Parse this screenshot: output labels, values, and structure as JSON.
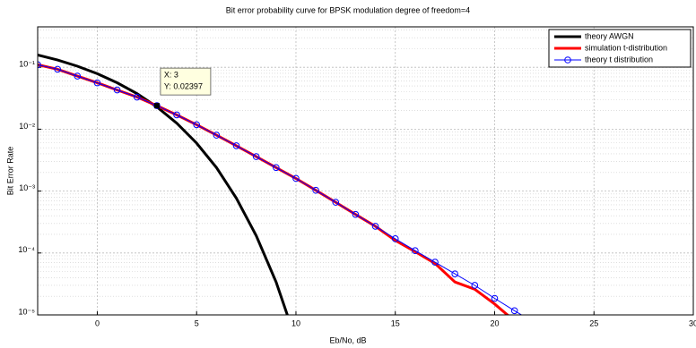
{
  "chart_data": {
    "type": "line",
    "title": "Bit error probability curve for BPSK modulation degree of freedom=4",
    "x_label": "Eb/No, dB",
    "y_label": "Bit Error Rate",
    "log_y": true,
    "grid": true,
    "minor_grid": true,
    "legend": "top-right",
    "xlim": [
      -3,
      30
    ],
    "xticks": [
      0,
      5,
      10,
      15,
      20,
      25,
      30
    ],
    "ylim": [
      1e-05,
      0.45
    ],
    "yticks": [
      {
        "value": 1e-05,
        "label": "10⁻⁵"
      },
      {
        "value": 0.0001,
        "label": "10⁻⁴"
      },
      {
        "value": 0.001,
        "label": "10⁻³"
      },
      {
        "value": 0.01,
        "label": "10⁻²"
      },
      {
        "value": 0.1,
        "label": "10⁻¹"
      }
    ],
    "series": [
      {
        "name": "theory AWGN",
        "color": "#000000",
        "marker": "none",
        "x": [
          -3,
          -2,
          -1,
          0,
          1,
          2,
          3,
          4,
          5,
          6,
          7,
          8,
          9,
          10
        ],
        "values": [
          0.158,
          0.131,
          0.104,
          0.0786,
          0.0563,
          0.0375,
          0.0229,
          0.0125,
          0.00595,
          0.00239,
          0.00077,
          0.00019,
          3.4e-05,
          3.9e-06
        ]
      },
      {
        "name": "simulation t-distribution",
        "color": "#ff0000",
        "marker": "none",
        "x": [
          -3,
          -2,
          -1,
          0,
          1,
          2,
          3,
          4,
          5,
          6,
          7,
          8,
          9,
          10,
          11,
          12,
          13,
          14,
          15,
          16,
          17,
          18,
          19,
          20,
          21
        ],
        "values": [
          0.11,
          0.093,
          0.072,
          0.056,
          0.043,
          0.033,
          0.024,
          0.017,
          0.0118,
          0.008,
          0.0054,
          0.0036,
          0.0024,
          0.0016,
          0.00103,
          0.00066,
          0.00042,
          0.00027,
          0.00016,
          0.000105,
          6.8e-05,
          3.4e-05,
          2.6e-05,
          1.5e-05,
          8e-06
        ]
      },
      {
        "name": "theory  t distribution",
        "color": "#0000ff",
        "marker": "circle",
        "x": [
          -3,
          -2,
          -1,
          0,
          1,
          2,
          3,
          4,
          5,
          6,
          7,
          8,
          9,
          10,
          11,
          12,
          13,
          14,
          15,
          16,
          17,
          18,
          19,
          20,
          21,
          22
        ],
        "values": [
          0.11,
          0.093,
          0.072,
          0.056,
          0.043,
          0.033,
          0.024,
          0.017,
          0.0118,
          0.008,
          0.0054,
          0.0036,
          0.0024,
          0.0016,
          0.00103,
          0.00066,
          0.00042,
          0.00027,
          0.00017,
          0.000109,
          7.1e-05,
          4.6e-05,
          3e-05,
          1.85e-05,
          1.17e-05,
          7.5e-06
        ]
      }
    ],
    "annotation": {
      "x": 3,
      "y": 0.02397,
      "x_text": "X: 3",
      "y_text": "Y: 0.02397"
    }
  }
}
